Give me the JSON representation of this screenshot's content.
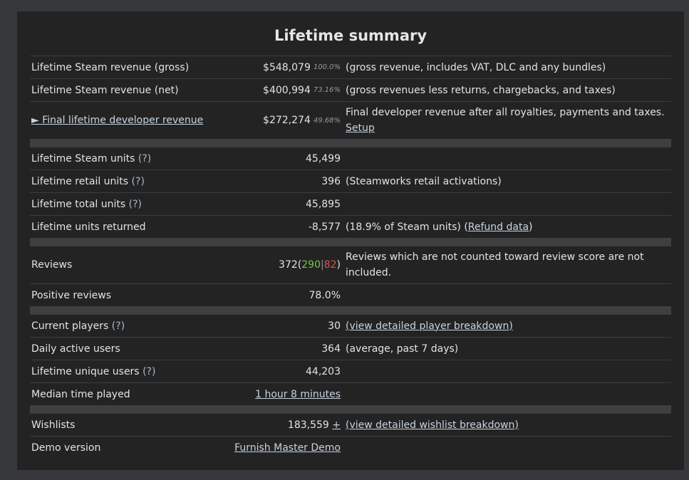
{
  "title": "Lifetime summary",
  "revenue": {
    "gross": {
      "label": "Lifetime Steam revenue (gross)",
      "value": "$548,079",
      "pct": "100.0%",
      "note": "(gross revenue, includes VAT, DLC and any bundles)"
    },
    "net": {
      "label": "Lifetime Steam revenue (net)",
      "value": "$400,994",
      "pct": "73.16%",
      "note": "(gross revenues less returns, chargebacks, and taxes)"
    },
    "developer": {
      "label": "► Final lifetime developer revenue",
      "value": "$272,274",
      "pct": "49.68%",
      "note": "Final developer revenue after all royalties, payments and taxes.",
      "setup_link": "Setup"
    }
  },
  "units": {
    "steam": {
      "label": "Lifetime Steam units",
      "help": "(?)",
      "value": "45,499"
    },
    "retail": {
      "label": "Lifetime retail units",
      "help": "(?)",
      "value": "396",
      "note": "(Steamworks retail activations)"
    },
    "total": {
      "label": "Lifetime total units",
      "help": "(?)",
      "value": "45,895"
    },
    "returned": {
      "label": "Lifetime units returned",
      "value": "-8,577",
      "note_prefix": "(18.9% of Steam units) (",
      "note_link": "Refund data",
      "note_suffix": ")"
    }
  },
  "reviews": {
    "reviews": {
      "label": "Reviews",
      "total": "372",
      "open": " (",
      "positive": "290",
      "sep": " | ",
      "negative": "82",
      "close": ")",
      "note": "Reviews which are not counted toward review score are not included."
    },
    "positive": {
      "label": "Positive reviews",
      "value": "78.0%"
    }
  },
  "players": {
    "current": {
      "label": "Current players",
      "help": "(?)",
      "value": "30",
      "note_link": "(view detailed player breakdown)"
    },
    "dau": {
      "label": "Daily active users",
      "value": "364",
      "note": "(average, past 7 days)"
    },
    "unique": {
      "label": "Lifetime unique users",
      "help": "(?)",
      "value": "44,203"
    },
    "median": {
      "label": "Median time played",
      "value_link": "1 hour 8 minutes"
    }
  },
  "wishlists": {
    "wishlists": {
      "label": "Wishlists",
      "value": "183,559",
      "plus": "+",
      "note_link": "(view detailed wishlist breakdown)"
    },
    "demo": {
      "label": "Demo version",
      "value_link": "Furnish Master Demo"
    }
  }
}
